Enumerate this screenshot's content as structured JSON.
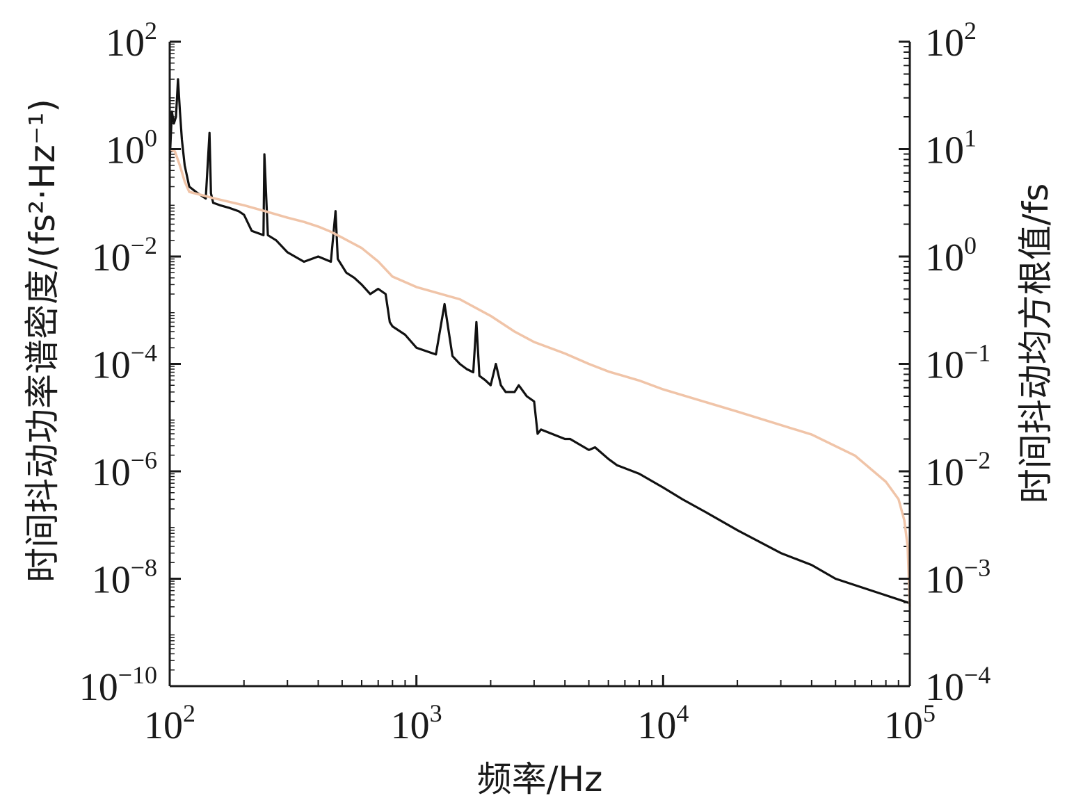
{
  "chart_data": {
    "type": "line",
    "x_scale": "log",
    "y_scale": "log",
    "xlabel": "频率/Hz",
    "ylabel_left": "时间抖动功率谱密度/(fs²·Hz⁻¹)",
    "ylabel_right": "时间抖动均方根值/fs",
    "xlim": [
      100,
      100000
    ],
    "ylim_left": [
      1e-10,
      100
    ],
    "ylim_right": [
      0.0001,
      100
    ],
    "x_ticks": [
      {
        "value": 100,
        "base": "10",
        "exp": "2"
      },
      {
        "value": 1000,
        "base": "10",
        "exp": "3"
      },
      {
        "value": 10000,
        "base": "10",
        "exp": "4"
      },
      {
        "value": 100000,
        "base": "10",
        "exp": "5"
      }
    ],
    "y_ticks_left": [
      {
        "value": 100,
        "base": "10",
        "exp": "2"
      },
      {
        "value": 1,
        "base": "10",
        "exp": "0"
      },
      {
        "value": 0.01,
        "base": "10",
        "exp": "−2"
      },
      {
        "value": 0.0001,
        "base": "10",
        "exp": "−4"
      },
      {
        "value": 1e-06,
        "base": "10",
        "exp": "−6"
      },
      {
        "value": 1e-08,
        "base": "10",
        "exp": "−8"
      },
      {
        "value": 1e-10,
        "base": "10",
        "exp": "−10"
      }
    ],
    "y_ticks_right": [
      {
        "value": 100,
        "base": "10",
        "exp": "2"
      },
      {
        "value": 10,
        "base": "10",
        "exp": "1"
      },
      {
        "value": 1,
        "base": "10",
        "exp": "0"
      },
      {
        "value": 0.1,
        "base": "10",
        "exp": "−1"
      },
      {
        "value": 0.01,
        "base": "10",
        "exp": "−2"
      },
      {
        "value": 0.001,
        "base": "10",
        "exp": "−3"
      },
      {
        "value": 0.0001,
        "base": "10",
        "exp": "−4"
      }
    ],
    "series": [
      {
        "axis": "left",
        "color": "#111111",
        "x": [
          100,
          102,
          104,
          106,
          108,
          110,
          112,
          115,
          120,
          130,
          140,
          145,
          147,
          150,
          160,
          175,
          190,
          200,
          215,
          240,
          242,
          250,
          270,
          300,
          350,
          400,
          450,
          470,
          480,
          520,
          560,
          600,
          650,
          700,
          750,
          780,
          800,
          900,
          1000,
          1200,
          1300,
          1400,
          1500,
          1600,
          1700,
          1750,
          1800,
          1900,
          2000,
          2100,
          2200,
          2300,
          2500,
          2600,
          2800,
          3000,
          3100,
          3200,
          4000,
          4200,
          5000,
          5300,
          6000,
          6500,
          8000,
          10000,
          12000,
          15000,
          20000,
          30000,
          40000,
          50000,
          70000,
          100000
        ],
        "y": [
          0.6,
          5,
          3,
          4,
          20,
          5,
          1.5,
          0.5,
          0.2,
          0.15,
          0.12,
          2,
          0.15,
          0.1,
          0.09,
          0.08,
          0.07,
          0.06,
          0.03,
          0.025,
          0.8,
          0.025,
          0.02,
          0.012,
          0.008,
          0.01,
          0.008,
          0.07,
          0.009,
          0.005,
          0.004,
          0.003,
          0.002,
          0.0025,
          0.002,
          0.0006,
          0.0005,
          0.00035,
          0.0002,
          0.00015,
          0.0013,
          0.00014,
          0.0001,
          8e-05,
          7e-05,
          0.0006,
          6e-05,
          5e-05,
          4e-05,
          0.0001,
          4e-05,
          3e-05,
          3e-05,
          4e-05,
          2.5e-05,
          2e-05,
          5e-06,
          6e-06,
          4e-06,
          4e-06,
          2.5e-06,
          2.8e-06,
          1.7e-06,
          1.3e-06,
          9e-07,
          5e-07,
          3e-07,
          1.7e-07,
          8e-08,
          3e-08,
          1.8e-08,
          1e-08,
          6e-09,
          3.5e-09
        ]
      },
      {
        "axis": "right",
        "color": "#f0c4a8",
        "x": [
          100,
          105,
          110,
          115,
          120,
          150,
          200,
          250,
          300,
          350,
          400,
          450,
          500,
          600,
          700,
          800,
          1000,
          1500,
          2000,
          2500,
          3000,
          4000,
          5000,
          6000,
          8000,
          10000,
          20000,
          40000,
          60000,
          80000,
          90000,
          95000,
          98000,
          100000
        ],
        "y": [
          10,
          9.5,
          7,
          5,
          4,
          3.5,
          3,
          2.6,
          2.3,
          2.1,
          1.9,
          1.7,
          1.5,
          1.2,
          0.9,
          0.65,
          0.52,
          0.4,
          0.28,
          0.2,
          0.16,
          0.125,
          0.1,
          0.085,
          0.07,
          0.058,
          0.036,
          0.022,
          0.014,
          0.008,
          0.0055,
          0.0035,
          0.002,
          0.00055
        ]
      }
    ]
  }
}
